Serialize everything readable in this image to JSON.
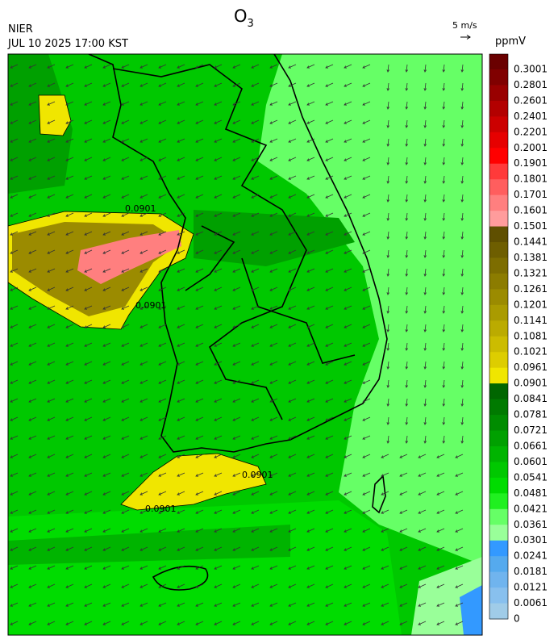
{
  "header": {
    "title_main": "O",
    "title_sub": "3",
    "source": "NIER",
    "datetime": "JUL 10 2025 17:00 KST",
    "wind_scale": "5 m/s",
    "unit": "ppmV"
  },
  "contour_labels": [
    "0.0901",
    "0.0901",
    "0.0901",
    "0.0901"
  ],
  "colorbar": {
    "labels": [
      "0.3001",
      "0.2801",
      "0.2601",
      "0.2401",
      "0.2201",
      "0.2001",
      "0.1901",
      "0.1801",
      "0.1701",
      "0.1601",
      "0.1501",
      "0.1441",
      "0.1381",
      "0.1321",
      "0.1261",
      "0.1201",
      "0.1141",
      "0.1081",
      "0.1021",
      "0.0961",
      "0.0901",
      "0.0841",
      "0.0781",
      "0.0721",
      "0.0661",
      "0.0601",
      "0.0541",
      "0.0481",
      "0.0421",
      "0.0361",
      "0.0301",
      "0.0241",
      "0.0181",
      "0.0121",
      "0.0061",
      "0"
    ],
    "colors": [
      "#6a0000",
      "#800000",
      "#990000",
      "#b30000",
      "#cc0000",
      "#e60000",
      "#ff0000",
      "#ff3a3a",
      "#ff5e5e",
      "#ff7f7f",
      "#ff9c9c",
      "#5f4f00",
      "#6e5e00",
      "#7d6d00",
      "#8c7c00",
      "#9b8b00",
      "#aa9b00",
      "#bbab00",
      "#ccbc00",
      "#ddcd00",
      "#f0e600",
      "#006600",
      "#007a00",
      "#008c00",
      "#00a000",
      "#00b400",
      "#00c800",
      "#00dc00",
      "#20f020",
      "#66ff66",
      "#99ff99",
      "#3399ff",
      "#55aaee",
      "#70b4ee",
      "#88c0ee",
      "#a0cce8"
    ]
  }
}
